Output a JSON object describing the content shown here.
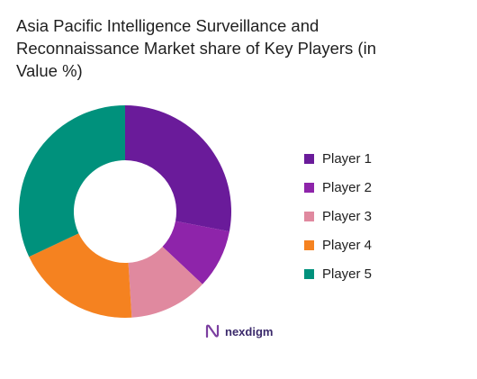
{
  "chart_data": {
    "type": "pie",
    "title": "Asia Pacific Intelligence Surveillance and Reconnaissance Market share of Key Players (in Value %)",
    "title_lines": [
      "Asia Pacific Intelligence Surveillance and",
      "Reconnaissance Market share of Key Players (in",
      "Value %)"
    ],
    "donut": true,
    "categories": [
      "Player 1",
      "Player 2",
      "Player 3",
      "Player 4",
      "Player 5"
    ],
    "values": [
      28,
      9,
      12,
      19,
      32
    ],
    "colors": [
      "#6a1b9a",
      "#8e24aa",
      "#e0899f",
      "#f58220",
      "#00917c"
    ],
    "legend_position": "right"
  },
  "brand": {
    "name": "nexdigm",
    "color": "#7b3fa0"
  }
}
